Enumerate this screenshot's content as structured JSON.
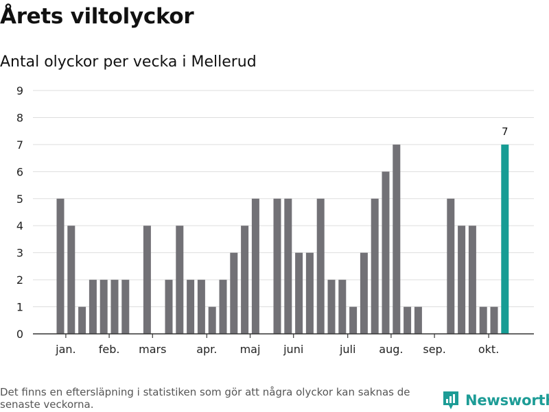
{
  "chart_data": {
    "type": "bar",
    "title": "Årets viltolyckor",
    "subtitle": "Antal olyckor per vecka i Mellerud",
    "xlabel": "",
    "ylabel": "",
    "ylim": [
      0,
      9
    ],
    "yticks": [
      0,
      1,
      2,
      3,
      4,
      5,
      6,
      7,
      8,
      9
    ],
    "grid": true,
    "month_labels": [
      {
        "label": "jan.",
        "week": 1.5
      },
      {
        "label": "feb.",
        "week": 5.5
      },
      {
        "label": "mars",
        "week": 9.5
      },
      {
        "label": "apr.",
        "week": 14.5
      },
      {
        "label": "maj",
        "week": 18.5
      },
      {
        "label": "juni",
        "week": 22.5
      },
      {
        "label": "juli",
        "week": 27.5
      },
      {
        "label": "aug.",
        "week": 31.5
      },
      {
        "label": "sep.",
        "week": 35.5
      },
      {
        "label": "okt.",
        "week": 40.5
      }
    ],
    "weeks": [
      1,
      2,
      3,
      4,
      5,
      6,
      7,
      8,
      9,
      10,
      11,
      12,
      13,
      14,
      15,
      16,
      17,
      18,
      19,
      20,
      21,
      22,
      23,
      24,
      25,
      26,
      27,
      28,
      29,
      30,
      31,
      32,
      33,
      34,
      35,
      36,
      37,
      38,
      39,
      40,
      41,
      42,
      43
    ],
    "values": [
      5,
      4,
      1,
      2,
      2,
      2,
      2,
      0,
      4,
      0,
      2,
      4,
      2,
      2,
      1,
      2,
      3,
      4,
      5,
      0,
      5,
      5,
      3,
      3,
      5,
      2,
      2,
      1,
      3,
      5,
      6,
      7,
      1,
      1,
      0,
      0,
      5,
      4,
      4,
      1,
      1,
      7,
      0
    ],
    "highlight_index": 41,
    "highlight_label": "7",
    "colors": {
      "bar": "#727176",
      "highlight": "#169c94",
      "grid": "#dddddd",
      "axis": "#333333"
    }
  },
  "footer": {
    "note": "Det finns en eftersläpning i statistiken som gör att några olyckor kan saknas de senaste veckorna.",
    "brand": "Newsworthy"
  }
}
